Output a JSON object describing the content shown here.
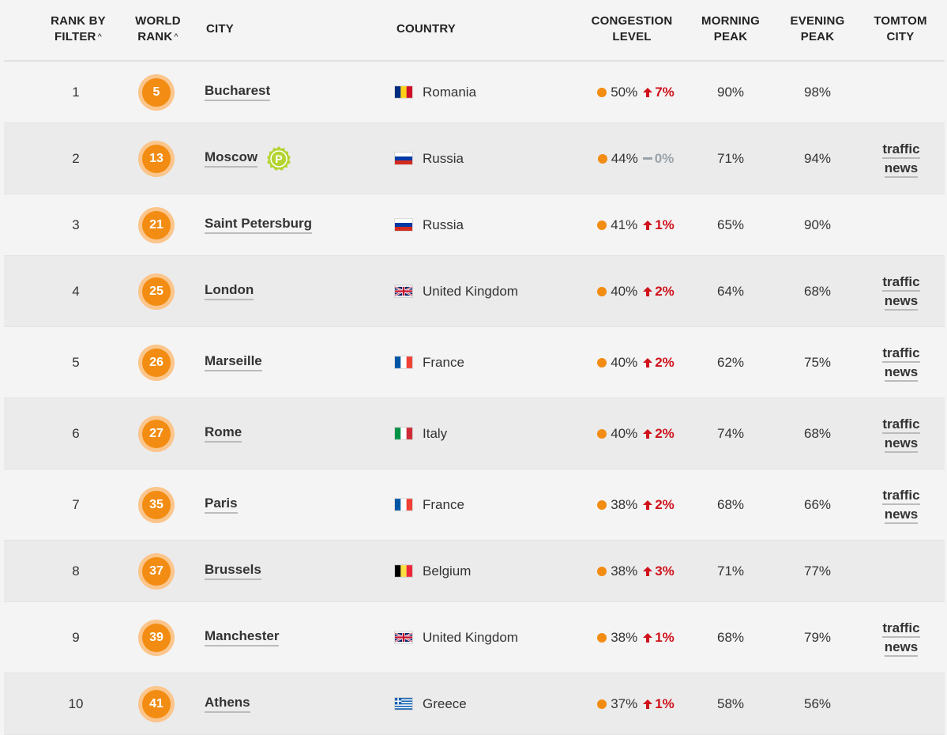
{
  "headers": {
    "rank_by_filter": "RANK BY FILTER",
    "world_rank": "WORLD RANK",
    "city": "CITY",
    "country": "COUNTRY",
    "congestion_level": "CONGESTION LEVEL",
    "morning_peak": "MORNING PEAK",
    "evening_peak": "EVENING PEAK",
    "tomtom_city": "TOMTOM CITY",
    "sort_caret": "^"
  },
  "colors": {
    "accent_orange": "#f28c12",
    "badge_ring": "#fbc58b",
    "change_up": "#d0121b",
    "change_flat": "#9aa3aa"
  },
  "rows": [
    {
      "rank": "1",
      "world": "5",
      "city": "Bucharest",
      "badge_icon": "",
      "flag": "ro",
      "country": "Romania",
      "congestion": "50%",
      "change": "7%",
      "dir": "up",
      "morning": "90%",
      "evening": "98%",
      "tt1": "",
      "tt2": ""
    },
    {
      "rank": "2",
      "world": "13",
      "city": "Moscow",
      "badge_icon": "parking-icon",
      "flag": "ru",
      "country": "Russia",
      "congestion": "44%",
      "change": "0%",
      "dir": "flat",
      "morning": "71%",
      "evening": "94%",
      "tt1": "traffic",
      "tt2": "news"
    },
    {
      "rank": "3",
      "world": "21",
      "city": "Saint Petersburg",
      "badge_icon": "",
      "flag": "ru",
      "country": "Russia",
      "congestion": "41%",
      "change": "1%",
      "dir": "up",
      "morning": "65%",
      "evening": "90%",
      "tt1": "",
      "tt2": ""
    },
    {
      "rank": "4",
      "world": "25",
      "city": "London",
      "badge_icon": "",
      "flag": "uk",
      "country": "United Kingdom",
      "congestion": "40%",
      "change": "2%",
      "dir": "up",
      "morning": "64%",
      "evening": "68%",
      "tt1": "traffic",
      "tt2": "news"
    },
    {
      "rank": "5",
      "world": "26",
      "city": "Marseille",
      "badge_icon": "",
      "flag": "fr",
      "country": "France",
      "congestion": "40%",
      "change": "2%",
      "dir": "up",
      "morning": "62%",
      "evening": "75%",
      "tt1": "traffic",
      "tt2": "news"
    },
    {
      "rank": "6",
      "world": "27",
      "city": "Rome",
      "badge_icon": "",
      "flag": "it",
      "country": "Italy",
      "congestion": "40%",
      "change": "2%",
      "dir": "up",
      "morning": "74%",
      "evening": "68%",
      "tt1": "traffic",
      "tt2": "news"
    },
    {
      "rank": "7",
      "world": "35",
      "city": "Paris",
      "badge_icon": "",
      "flag": "fr",
      "country": "France",
      "congestion": "38%",
      "change": "2%",
      "dir": "up",
      "morning": "68%",
      "evening": "66%",
      "tt1": "traffic",
      "tt2": "news"
    },
    {
      "rank": "8",
      "world": "37",
      "city": "Brussels",
      "badge_icon": "",
      "flag": "be",
      "country": "Belgium",
      "congestion": "38%",
      "change": "3%",
      "dir": "up",
      "morning": "71%",
      "evening": "77%",
      "tt1": "",
      "tt2": ""
    },
    {
      "rank": "9",
      "world": "39",
      "city": "Manchester",
      "badge_icon": "",
      "flag": "uk",
      "country": "United Kingdom",
      "congestion": "38%",
      "change": "1%",
      "dir": "up",
      "morning": "68%",
      "evening": "79%",
      "tt1": "traffic",
      "tt2": "news"
    },
    {
      "rank": "10",
      "world": "41",
      "city": "Athens",
      "badge_icon": "",
      "flag": "gr",
      "country": "Greece",
      "congestion": "37%",
      "change": "1%",
      "dir": "up",
      "morning": "58%",
      "evening": "56%",
      "tt1": "",
      "tt2": ""
    }
  ]
}
